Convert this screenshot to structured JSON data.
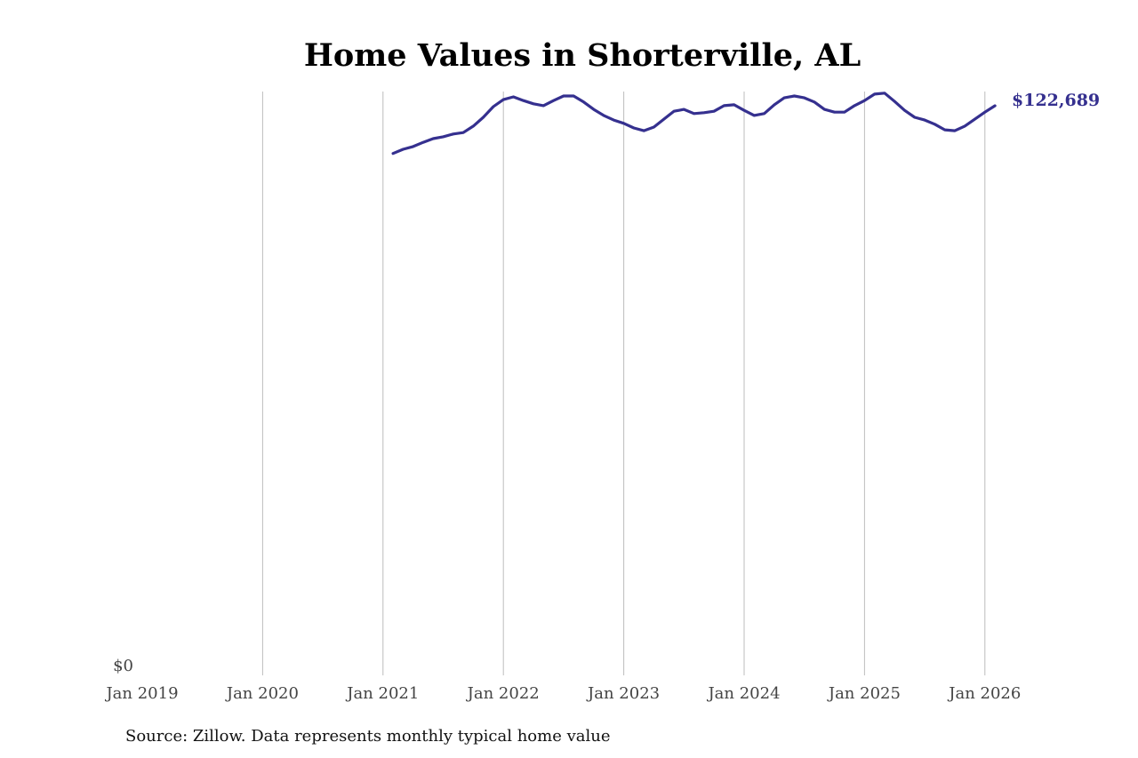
{
  "chart_data": {
    "type": "line",
    "title": "Home Values in Shorterville, AL",
    "xlabel": "",
    "ylabel": "",
    "source": "Source: Zillow. Data represents monthly typical home value",
    "x_ticks": [
      "Jan 2019",
      "Jan 2020",
      "Jan 2021",
      "Jan 2022",
      "Jan 2023",
      "Jan 2024",
      "Jan 2025",
      "Jan 2026"
    ],
    "y_ticks": [
      "$0"
    ],
    "xlim": [
      "2019-01",
      "2026-12"
    ],
    "ylim": [
      0,
      125750
    ],
    "grid": "vertical",
    "line_color": "#35308f",
    "end_label": "$122,689",
    "series": [
      {
        "name": "Typical home value",
        "start": "2021-02",
        "values": [
          112400,
          113300,
          113900,
          114800,
          115600,
          116000,
          116600,
          116900,
          118300,
          120200,
          122500,
          124000,
          124600,
          123800,
          123100,
          122700,
          123800,
          124800,
          124800,
          123500,
          121900,
          120600,
          119600,
          118900,
          117900,
          117300,
          118100,
          119800,
          121500,
          121900,
          121000,
          121200,
          121500,
          122700,
          122900,
          121700,
          120600,
          121000,
          122900,
          124400,
          124800,
          124400,
          123500,
          121900,
          121300,
          121300,
          122700,
          123800,
          125200,
          125400,
          123600,
          121700,
          120200,
          119600,
          118700,
          117500,
          117300,
          118300,
          119800,
          121300,
          122689
        ]
      }
    ]
  }
}
